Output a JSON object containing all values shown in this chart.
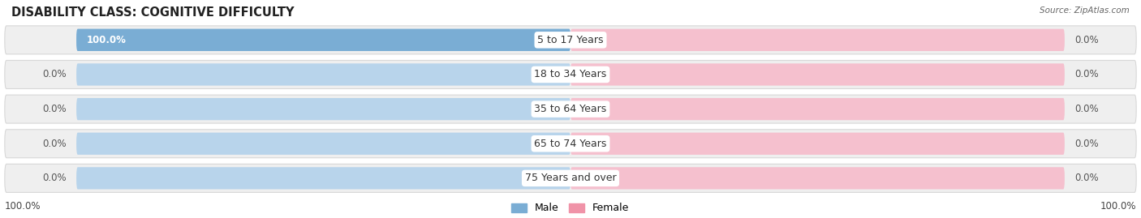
{
  "title": "DISABILITY CLASS: COGNITIVE DIFFICULTY",
  "source": "Source: ZipAtlas.com",
  "categories": [
    "5 to 17 Years",
    "18 to 34 Years",
    "35 to 64 Years",
    "65 to 74 Years",
    "75 Years and over"
  ],
  "male_values": [
    100.0,
    0.0,
    0.0,
    0.0,
    0.0
  ],
  "female_values": [
    0.0,
    0.0,
    0.0,
    0.0,
    0.0
  ],
  "male_color": "#7aadd4",
  "female_color": "#f093a8",
  "male_track_color": "#b8d4eb",
  "female_track_color": "#f5c0ce",
  "row_bg_color": "#efefef",
  "row_edge_color": "#d8d8d8",
  "male_label": "Male",
  "female_label": "Female",
  "title_fontsize": 10.5,
  "label_fontsize": 8.5,
  "cat_fontsize": 9,
  "tick_fontsize": 8.5,
  "legend_fontsize": 9,
  "bottom_left_label": "100.0%",
  "bottom_right_label": "100.0%",
  "figwidth": 14.06,
  "figheight": 2.69,
  "dpi": 100
}
